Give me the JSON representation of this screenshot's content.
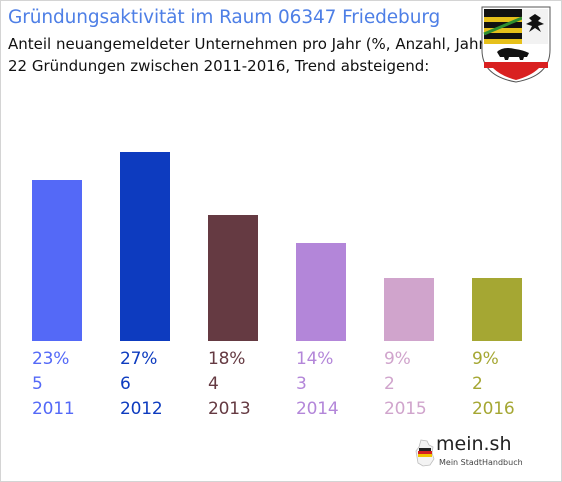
{
  "header": {
    "title": "Gründungsaktivität im Raum 06347 Friedeburg",
    "subtitle_line1": "Anteil neuangemeldeter Unternehmen pro Jahr (%, Anzahl, Jahr)",
    "subtitle_line2": "22 Gründungen zwischen 2011-2016, Trend absteigend:"
  },
  "brand": {
    "name": "mein.sh",
    "tagline": "Mein StadtHandbuch",
    "logo_icon": "germany-map-icon"
  },
  "coat_of_arms": {
    "icon": "saxony-anhalt-coat-of-arms-icon"
  },
  "chart_data": {
    "type": "bar",
    "categories": [
      "2011",
      "2012",
      "2013",
      "2014",
      "2015",
      "2016"
    ],
    "values": [
      23,
      27,
      18,
      14,
      9,
      9
    ],
    "counts": [
      5,
      6,
      4,
      3,
      2,
      2
    ],
    "percent_labels": [
      "23%",
      "27%",
      "18%",
      "14%",
      "9%",
      "9%"
    ],
    "count_labels": [
      "5",
      "6",
      "4",
      "3",
      "2",
      "2"
    ],
    "colors": [
      "#5469f7",
      "#0d3bbf",
      "#653a42",
      "#b386d9",
      "#d0a4cc",
      "#a5a733"
    ],
    "ylim": [
      0,
      27
    ],
    "title": "Gründungsaktivität im Raum 06347 Friedeburg",
    "xlabel": "",
    "ylabel": "",
    "grid": false,
    "legend": "none"
  }
}
